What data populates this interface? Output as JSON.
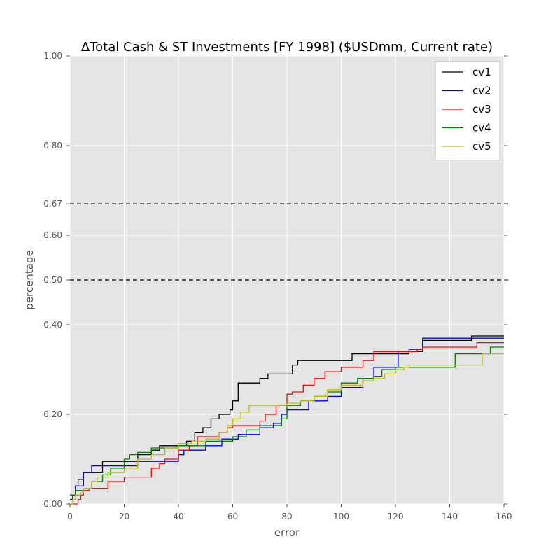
{
  "chart_data": {
    "type": "line",
    "title": "ΔTotal Cash & ST Investments [FY 1998] ($USDmm, Current rate)",
    "xlabel": "error",
    "ylabel": "percentage",
    "xlim": [
      0,
      160
    ],
    "ylim": [
      0,
      1
    ],
    "xticks": [
      "0",
      "20",
      "40",
      "60",
      "80",
      "100",
      "120",
      "140",
      "160"
    ],
    "yticks": [
      {
        "value": 0.0,
        "label": "0.00"
      },
      {
        "value": 0.2,
        "label": "0.20"
      },
      {
        "value": 0.4,
        "label": "0.40"
      },
      {
        "value": 0.5,
        "label": "0.50"
      },
      {
        "value": 0.6,
        "label": "0.60"
      },
      {
        "value": 0.67,
        "label": "0.67"
      },
      {
        "value": 0.8,
        "label": "0.80"
      },
      {
        "value": 1.0,
        "label": "1.00"
      }
    ],
    "grid": true,
    "legend_position": "top-right",
    "reference_lines": [
      0.5,
      0.67
    ],
    "series": [
      {
        "name": "cv1",
        "color": "#000000",
        "x": [
          0,
          1,
          2,
          3,
          5,
          8,
          12,
          18,
          25,
          30,
          33,
          40,
          43,
          46,
          49,
          52,
          55,
          59,
          60,
          62,
          68,
          70,
          73,
          80,
          82,
          84,
          100,
          104,
          125,
          130,
          148,
          160
        ],
        "y": [
          0.01,
          0.02,
          0.04,
          0.055,
          0.07,
          0.07,
          0.095,
          0.095,
          0.11,
          0.12,
          0.13,
          0.13,
          0.14,
          0.16,
          0.17,
          0.19,
          0.2,
          0.21,
          0.23,
          0.27,
          0.27,
          0.28,
          0.29,
          0.29,
          0.31,
          0.32,
          0.32,
          0.335,
          0.34,
          0.365,
          0.375,
          0.375
        ]
      },
      {
        "name": "cv2",
        "color": "#0000ff",
        "x": [
          0,
          2,
          5,
          8,
          15,
          25,
          38,
          40,
          42,
          50,
          56,
          62,
          70,
          75,
          78,
          80,
          88,
          95,
          100,
          108,
          112,
          118,
          121,
          125,
          130,
          160
        ],
        "y": [
          0.02,
          0.04,
          0.07,
          0.085,
          0.085,
          0.095,
          0.095,
          0.11,
          0.12,
          0.13,
          0.145,
          0.155,
          0.17,
          0.18,
          0.2,
          0.21,
          0.23,
          0.24,
          0.26,
          0.28,
          0.305,
          0.305,
          0.34,
          0.345,
          0.37,
          0.37
        ]
      },
      {
        "name": "cv3",
        "color": "#ff0000",
        "x": [
          0,
          2,
          3,
          4,
          5,
          6,
          7,
          12,
          14,
          20,
          28,
          30,
          33,
          35,
          40,
          44,
          47,
          52,
          55,
          58,
          60,
          65,
          70,
          72,
          76,
          80,
          82,
          86,
          90,
          94,
          100,
          108,
          112,
          120,
          128,
          130,
          150,
          160
        ],
        "y": [
          0.0,
          0.0,
          0.01,
          0.02,
          0.03,
          0.03,
          0.035,
          0.035,
          0.05,
          0.06,
          0.06,
          0.08,
          0.09,
          0.1,
          0.12,
          0.13,
          0.15,
          0.15,
          0.16,
          0.17,
          0.175,
          0.175,
          0.185,
          0.2,
          0.22,
          0.245,
          0.25,
          0.265,
          0.28,
          0.295,
          0.305,
          0.32,
          0.34,
          0.34,
          0.345,
          0.35,
          0.36,
          0.36
        ]
      },
      {
        "name": "cv4",
        "color": "#008000",
        "x": [
          0,
          2,
          5,
          8,
          12,
          15,
          20,
          22,
          25,
          30,
          40,
          50,
          60,
          65,
          70,
          78,
          80,
          85,
          90,
          95,
          100,
          106,
          112,
          115,
          120,
          138,
          142,
          148,
          155,
          160
        ],
        "y": [
          0.02,
          0.03,
          0.035,
          0.05,
          0.065,
          0.08,
          0.1,
          0.11,
          0.115,
          0.125,
          0.13,
          0.14,
          0.15,
          0.165,
          0.175,
          0.19,
          0.22,
          0.23,
          0.24,
          0.25,
          0.27,
          0.28,
          0.285,
          0.3,
          0.305,
          0.305,
          0.335,
          0.335,
          0.35,
          0.35
        ]
      },
      {
        "name": "cv5",
        "color": "#bfbf00",
        "x": [
          0,
          1,
          2,
          4,
          5,
          8,
          10,
          14,
          20,
          25,
          30,
          35,
          40,
          45,
          50,
          55,
          58,
          60,
          63,
          66,
          75,
          80,
          85,
          90,
          95,
          100,
          108,
          112,
          116,
          120,
          123,
          125,
          150,
          152,
          160
        ],
        "y": [
          0.0,
          0.01,
          0.02,
          0.025,
          0.035,
          0.05,
          0.06,
          0.07,
          0.08,
          0.1,
          0.11,
          0.125,
          0.135,
          0.14,
          0.145,
          0.16,
          0.175,
          0.19,
          0.205,
          0.22,
          0.22,
          0.225,
          0.23,
          0.24,
          0.255,
          0.265,
          0.275,
          0.28,
          0.29,
          0.3,
          0.305,
          0.31,
          0.31,
          0.335,
          0.335
        ]
      }
    ]
  }
}
